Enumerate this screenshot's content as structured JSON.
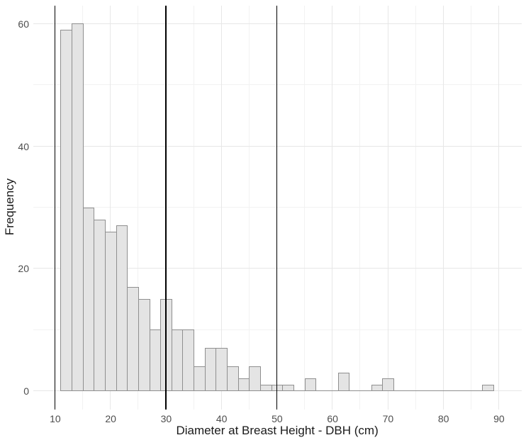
{
  "chart_data": {
    "type": "bar",
    "subtype": "histogram",
    "title": "",
    "xlabel": "Diameter at Breast Height - DBH (cm)",
    "ylabel": "Frequency",
    "bins": {
      "start": 11,
      "bin_width": 2,
      "counts": [
        59,
        60,
        30,
        28,
        26,
        27,
        17,
        15,
        10,
        15,
        10,
        10,
        4,
        7,
        7,
        4,
        2,
        4,
        1,
        1,
        1,
        0,
        2,
        0,
        0,
        3,
        0,
        0,
        1,
        2,
        0,
        0,
        0,
        0,
        0,
        0,
        0,
        0,
        1
      ]
    },
    "x_ticks": [
      10,
      20,
      30,
      40,
      50,
      60,
      70,
      80,
      90
    ],
    "x_minor_ticks": [
      15,
      25,
      35,
      45,
      55,
      65,
      75,
      85
    ],
    "y_ticks": [
      0,
      20,
      40,
      60
    ],
    "y_minor_ticks": [
      10,
      30,
      50
    ],
    "xlim": [
      6.05,
      94.1
    ],
    "ylim": [
      -3,
      63
    ],
    "vlines": [
      10,
      30,
      50
    ],
    "grid": true,
    "legend": false,
    "colors": {
      "bar_fill": "#e4e4e4",
      "bar_border": "#8f8f8f",
      "vline": "#000000",
      "grid_major": "#e7e7e7",
      "grid_minor": "#f2f2f2",
      "tick_text": "#4d4d4d",
      "axis_title_text": "#1a1a1a",
      "background": "#ffffff"
    }
  }
}
